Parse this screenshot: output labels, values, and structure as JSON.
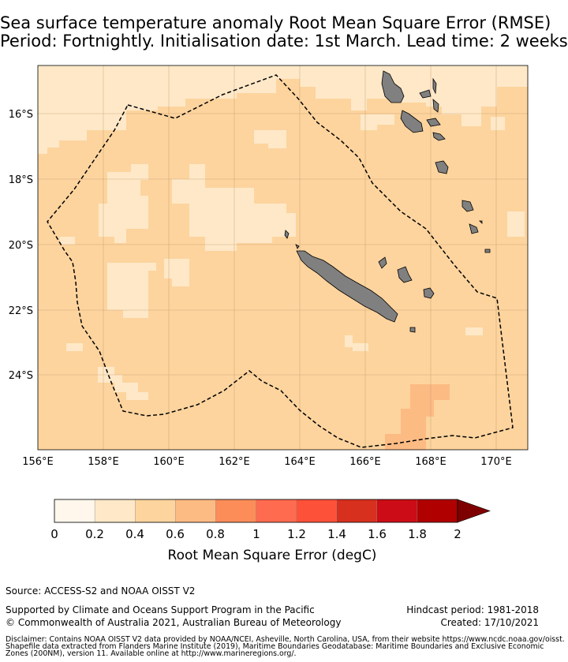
{
  "title": {
    "line1": "Sea surface temperature anomaly Root Mean Square Error (RMSE)",
    "line2": "Period: Fortnightly. Initialisation date: 1st March. Lead time: 2 weeks"
  },
  "map": {
    "lon_range": [
      156,
      171
    ],
    "lat_range": [
      -26.2,
      -14.5
    ],
    "lon_ticks": [
      "156°E",
      "158°E",
      "160°E",
      "162°E",
      "164°E",
      "166°E",
      "168°E",
      "170°E"
    ],
    "lat_ticks": [
      "16°S",
      "18°S",
      "20°S",
      "22°S",
      "24°S"
    ],
    "land_color": "#808080",
    "ocean_base_color": "#fdd49e",
    "eez_boundary_style": "dashed black line"
  },
  "colorbar": {
    "label": "Root Mean Square Error (degC)",
    "tick_labels": [
      "0",
      "0.2",
      "0.4",
      "0.6",
      "0.8",
      "1",
      "1.2",
      "1.4",
      "1.6",
      "1.8",
      "2"
    ],
    "colors": [
      "#fff7ec",
      "#fee8c8",
      "#fdd49e",
      "#fdbb84",
      "#fc8d59",
      "#fe6b4f",
      "#fe5139",
      "#d7301f",
      "#cc0c16",
      "#b00000"
    ],
    "extend_color": "#7f0000"
  },
  "footer": {
    "source": "Source: ACCESS-S2 and NOAA OISST V2",
    "supported": "Supported by Climate and Oceans Support Program in the Pacific",
    "copyright": "© Commonwealth of Australia 2021, Australian Bureau of Meteorology",
    "hindcast": "Hindcast period: 1981-2018",
    "created": "Created: 17/10/2021",
    "disclaimer1": "Disclaimer: Contains NOAA OISST V2 data provided by NOAA/NCEI, Asheville, North Carolina, USA, from their website https://www.ncdc.noaa.gov/oisst.",
    "disclaimer2": "Shapefile data extracted from Flanders Marine Institute (2019), Maritime Boundaries Geodatabase: Maritime Boundaries and Exclusive Economic",
    "disclaimer3": "Zones (200NM), version 11. Available online at http://www.marineregions.org/."
  }
}
